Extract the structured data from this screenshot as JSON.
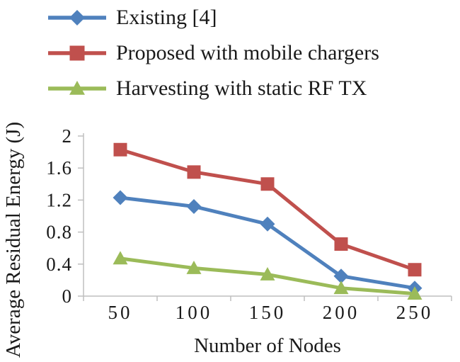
{
  "chart_data": {
    "type": "line",
    "title": "",
    "xlabel": "Number of Nodes",
    "ylabel": "Average Residual Energy (J)",
    "x": [
      50,
      100,
      150,
      200,
      250
    ],
    "ylim": [
      0,
      2
    ],
    "yticks": [
      0,
      0.4,
      0.8,
      1.2,
      1.6,
      2
    ],
    "grid": false,
    "legend_position": "top-left",
    "axis_color": "#bfbfbf",
    "tick_label_color": "#1a1a1a",
    "series": [
      {
        "name": "Existing [4]",
        "marker": "diamond",
        "color": "#4f81bd",
        "values": [
          1.23,
          1.12,
          0.9,
          0.25,
          0.1
        ]
      },
      {
        "name": "Proposed with mobile chargers",
        "marker": "square",
        "color": "#c0504d",
        "values": [
          1.83,
          1.55,
          1.4,
          0.65,
          0.33
        ]
      },
      {
        "name": "Harvesting with static RF TX",
        "marker": "triangle",
        "color": "#9bbb59",
        "values": [
          0.47,
          0.35,
          0.27,
          0.1,
          0.03
        ]
      }
    ]
  }
}
